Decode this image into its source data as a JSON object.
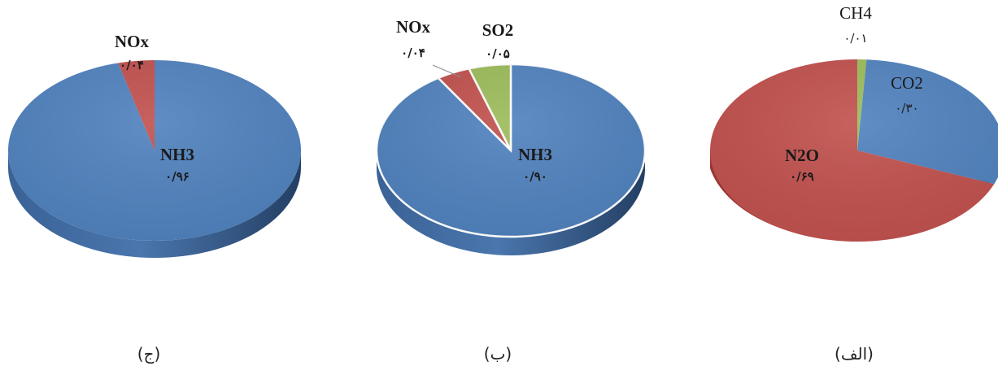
{
  "chart_data": [
    {
      "type": "pie",
      "panel_label": "(ج)",
      "slices": [
        {
          "name": "NH3",
          "value": 0.96,
          "value_label": "۰/۹۶",
          "color": "#4f81bd",
          "bold": true
        },
        {
          "name": "NOx",
          "value": 0.04,
          "value_label": "۰/۰۴",
          "color": "#c0504d",
          "bold": true
        }
      ]
    },
    {
      "type": "pie",
      "panel_label": "(ب)",
      "slices": [
        {
          "name": "NH3",
          "value": 0.9,
          "value_label": "۰/۹۰",
          "color": "#4f81bd",
          "bold": true
        },
        {
          "name": "NOx",
          "value": 0.04,
          "value_label": "۰/۰۴",
          "color": "#c0504d",
          "bold": true
        },
        {
          "name": "SO2",
          "value": 0.05,
          "value_label": "۰/۰۵",
          "color": "#9bbb59",
          "bold": true
        }
      ]
    },
    {
      "type": "pie",
      "panel_label": "(الف)",
      "slices": [
        {
          "name": "CO2",
          "value": 0.3,
          "value_label": "۰/۳۰",
          "color": "#4f81bd",
          "bold": false
        },
        {
          "name": "N2O",
          "value": 0.69,
          "value_label": "۰/۶۹",
          "color": "#c0504d",
          "bold": true
        },
        {
          "name": "CH4",
          "value": 0.01,
          "value_label": "۰/۰۱",
          "color": "#9bbb59",
          "bold": false
        }
      ]
    }
  ]
}
